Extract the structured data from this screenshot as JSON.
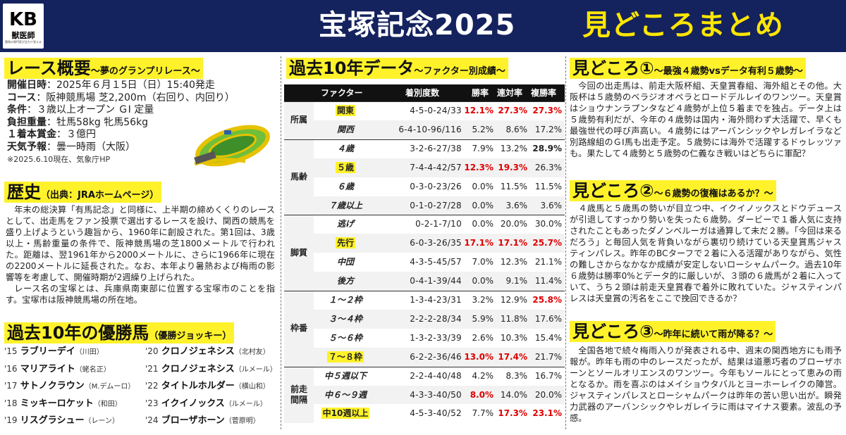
{
  "header": {
    "logo": {
      "kb": "KB",
      "jv": "獣医師",
      "sub": "競馬の専門家が全力で答える"
    },
    "title": "宝塚記念2025",
    "subtitle": "見どころまとめ"
  },
  "overview": {
    "title": "レース概要",
    "subtitle": "〜夢のグランプリレース〜",
    "rows": [
      {
        "k": "開催日時",
        "v": "：2025年６月１5日（日）15:40発走"
      },
      {
        "k": "コース",
        "v": "：阪神競馬場 芝2,200m（右回り、内回り）"
      },
      {
        "k": "条件",
        "v": "：３歳以上オープン ＧⅠ 定量"
      },
      {
        "k": "負担重量",
        "v": "：牡馬58kg 牝馬56kg"
      },
      {
        "k": "１着本賞金",
        "v": "：３億円"
      },
      {
        "k": "天気予報",
        "v": "：曇一時雨（大阪）"
      }
    ],
    "note": "※2025.6.10現在、気象庁HP"
  },
  "history": {
    "title": "歴史",
    "subtitle": "（出典：JRAホームページ）",
    "p1": "年末の総決算「有馬記念」と同様に、上半期の締めくくりのレースとして、出走馬をファン投票で選出するレースを設け、関西の競馬を盛り上げようという趣旨から、1960年に創設された。第1回は、3歳以上・馬齢重量の条件で、阪神競馬場の芝1800メートルで行われた。距離は、翌1961年から2000メートルに、さらに1966年に現在の2200メートルに延長された。なお、本年より暑熱および梅雨の影響等を考慮して、開催時期が2週繰り上げられた。",
    "p2": "レース名の宝塚とは、兵庫県南東部に位置する宝塚市のことを指す。宝塚市は阪神競馬場の所在地。"
  },
  "winners": {
    "title": "過去10年の優勝馬",
    "subtitle": "（優勝ジョッキー）",
    "items": [
      {
        "yr": "'15",
        "horse": "ラブリーデイ",
        "jockey": "（川田）"
      },
      {
        "yr": "'16",
        "horse": "マリアライト",
        "jockey": "（蛯名正）"
      },
      {
        "yr": "'17",
        "horse": "サトノクラウン",
        "jockey": "（M.デムーロ）"
      },
      {
        "yr": "'18",
        "horse": "ミッキーロケット",
        "jockey": "（和田）"
      },
      {
        "yr": "'19",
        "horse": "リスグラシュー",
        "jockey": "（レーン）"
      },
      {
        "yr": "'20",
        "horse": "クロノジェネシス",
        "jockey": "（北村友）"
      },
      {
        "yr": "'21",
        "horse": "クロノジェネシス",
        "jockey": "（ルメール）"
      },
      {
        "yr": "'22",
        "horse": "タイトルホルダー",
        "jockey": "（横山和）"
      },
      {
        "yr": "'23",
        "horse": "イクイノックス",
        "jockey": "（ルメール）"
      },
      {
        "yr": "'24",
        "horse": "ブローザホーン",
        "jockey": "（菅原明）"
      }
    ]
  },
  "data_table": {
    "title": "過去10年データ",
    "subtitle": "〜ファクター別成績〜",
    "headers": {
      "factor": "ファクター",
      "record": "着別度数",
      "win": "勝率",
      "top2": "連対率",
      "top3": "複勝率"
    },
    "groups": [
      {
        "label": "所属",
        "rows": [
          {
            "f": "関東",
            "hl": true,
            "rec": "4-5-0-24/33",
            "r1": "12.1%",
            "r2": "27.3%",
            "r3": "27.3%",
            "s1": "red",
            "s2": "red",
            "s3": "red"
          },
          {
            "f": "関西",
            "hl": false,
            "rec": "6-4-10-96/116",
            "r1": "5.2%",
            "r2": "8.6%",
            "r3": "17.2%",
            "s1": "",
            "s2": "",
            "s3": ""
          }
        ]
      },
      {
        "label": "馬齢",
        "rows": [
          {
            "f": "４歳",
            "hl": false,
            "rec": "3-2-6-27/38",
            "r1": "7.9%",
            "r2": "13.2%",
            "r3": "28.9%",
            "s1": "",
            "s2": "",
            "s3": "bold"
          },
          {
            "f": "５歳",
            "hl": true,
            "rec": "7-4-4-42/57",
            "r1": "12.3%",
            "r2": "19.3%",
            "r3": "26.3%",
            "s1": "red",
            "s2": "red",
            "s3": ""
          },
          {
            "f": "６歳",
            "hl": false,
            "rec": "0-3-0-23/26",
            "r1": "0.0%",
            "r2": "11.5%",
            "r3": "11.5%",
            "s1": "",
            "s2": "",
            "s3": ""
          },
          {
            "f": "７歳以上",
            "hl": false,
            "rec": "0-1-0-27/28",
            "r1": "0.0%",
            "r2": "3.6%",
            "r3": "3.6%",
            "s1": "",
            "s2": "",
            "s3": ""
          }
        ]
      },
      {
        "label": "脚質",
        "rows": [
          {
            "f": "逃げ",
            "hl": false,
            "rec": "0-2-1-7/10",
            "r1": "0.0%",
            "r2": "20.0%",
            "r3": "30.0%",
            "s1": "",
            "s2": "",
            "s3": ""
          },
          {
            "f": "先行",
            "hl": true,
            "rec": "6-0-3-26/35",
            "r1": "17.1%",
            "r2": "17.1%",
            "r3": "25.7%",
            "s1": "red",
            "s2": "red",
            "s3": "red"
          },
          {
            "f": "中団",
            "hl": false,
            "rec": "4-3-5-45/57",
            "r1": "7.0%",
            "r2": "12.3%",
            "r3": "21.1%",
            "s1": "",
            "s2": "",
            "s3": ""
          },
          {
            "f": "後方",
            "hl": false,
            "rec": "0-4-1-39/44",
            "r1": "0.0%",
            "r2": "9.1%",
            "r3": "11.4%",
            "s1": "",
            "s2": "",
            "s3": ""
          }
        ]
      },
      {
        "label": "枠番",
        "rows": [
          {
            "f": "１〜２枠",
            "hl": false,
            "rec": "1-3-4-23/31",
            "r1": "3.2%",
            "r2": "12.9%",
            "r3": "25.8%",
            "s1": "",
            "s2": "",
            "s3": "red"
          },
          {
            "f": "３〜４枠",
            "hl": false,
            "rec": "2-2-2-28/34",
            "r1": "5.9%",
            "r2": "11.8%",
            "r3": "17.6%",
            "s1": "",
            "s2": "",
            "s3": ""
          },
          {
            "f": "５〜６枠",
            "hl": false,
            "rec": "1-3-2-33/39",
            "r1": "2.6%",
            "r2": "10.3%",
            "r3": "15.4%",
            "s1": "",
            "s2": "",
            "s3": ""
          },
          {
            "f": "７〜８枠",
            "hl": true,
            "rec": "6-2-2-36/46",
            "r1": "13.0%",
            "r2": "17.4%",
            "r3": "21.7%",
            "s1": "red",
            "s2": "red",
            "s3": ""
          }
        ]
      },
      {
        "label": "前走\n間隔",
        "rows": [
          {
            "f": "中５週以下",
            "hl": false,
            "rec": "2-2-4-40/48",
            "r1": "4.2%",
            "r2": "8.3%",
            "r3": "16.7%",
            "s1": "",
            "s2": "",
            "s3": ""
          },
          {
            "f": "中６〜９週",
            "hl": false,
            "rec": "4-3-3-40/50",
            "r1": "8.0%",
            "r2": "14.0%",
            "r3": "20.0%",
            "s1": "red",
            "s2": "",
            "s3": ""
          },
          {
            "f": "中10週以上",
            "hl": true,
            "rec": "4-5-3-40/52",
            "r1": "7.7%",
            "r2": "17.3%",
            "r3": "23.1%",
            "s1": "",
            "s2": "red",
            "s3": "red"
          }
        ]
      }
    ]
  },
  "highlights": [
    {
      "title": "見どころ①",
      "subtitle": "〜最強４歳勢vsデータ有利５歳勢〜",
      "text": "今回の出走馬は、前走大阪杯組、天皇賞春組、海外組とその他。大阪杯は５歳勢のベラジオオペラとロードデルレイのワンツー。天皇賞はショウナンラプンタなど４歳勢が上位５着までを独占。データ上は５歳勢有利だが、今年の４歳勢は国内・海外問わず大活躍で、早くも最強世代の呼び声高い。４歳勢にはアーバンシックやレガレイラなど別路線組のＧⅠ馬も出走予定。５歳勢には海外で活躍するドゥレッツァも。果たして４歳勢と５歳勢の仁義なき戦いはどちらに軍配？"
    },
    {
      "title": "見どころ②",
      "subtitle": "〜６歳勢の復権はあるか？〜",
      "text": "４歳馬と５歳馬の勢いが目立つ中、イクイノックスとドウデュースが引退してすっかり勢いを失った６歳勢。ダービーで１番人気に支持されたこともあったダノンベルーガは通算して未だ２勝。「今回は来るだろう」と毎回人気を背負いながら裏切り続けている天皇賞馬ジャスティンパレス。昨年のBCターフで２着に入る活躍がありながら、気性の難しさからなかなか成績が安定しないローシャムパーク。過去10年６歳勢は勝率0%とデータ的に厳しいが、３頭の６歳馬が２着に入っていて、うち２頭は前走天皇賞春で着外に敗れていた。ジャスティンパレスは天皇賞の汚名をここで挽回できるか？"
    },
    {
      "title": "見どころ③",
      "subtitle": "〜昨年に続いて雨が降る？〜",
      "text": "全国各地で続々梅雨入りが発表される中、週末の関西地方にも雨予報が。昨年も雨の中のレースだったが、結果は道悪巧者のブローザホーンとソールオリエンスのワンツー。今年もソールにとって恵みの雨となるか。雨を喜ぶのはメイショウタバルとヨーホーレイクの陣営。ジャスティンパレスとローシャムパークは昨年の苦い思い出が。瞬発力武器のアーバンシックやレガレイラに雨はマイナス要素。波乱の予感。"
    }
  ]
}
